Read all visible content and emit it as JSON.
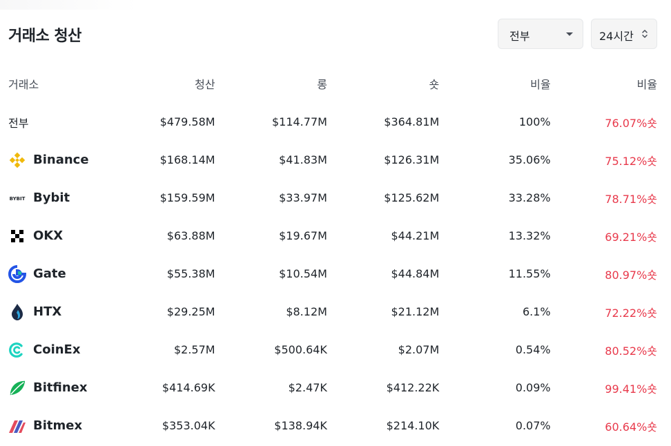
{
  "header": {
    "title": "거래소 청산",
    "exchange_select": "전부",
    "period_select": "24시간"
  },
  "table": {
    "columns": [
      "거래소",
      "청산",
      "롱",
      "숏",
      "비율",
      "비율"
    ],
    "total_row": {
      "exchange": "전부",
      "liquidation": "$479.58M",
      "long": "$114.77M",
      "short": "$364.81M",
      "share": "100%",
      "ratio": "76.07%숏"
    },
    "rows": [
      {
        "exchange": "Binance",
        "icon": "binance-logo-icon",
        "liquidation": "$168.14M",
        "long": "$41.83M",
        "short": "$126.31M",
        "share": "35.06%",
        "ratio": "75.12%숏"
      },
      {
        "exchange": "Bybit",
        "icon": "bybit-logo-icon",
        "logo_text": "BYBIT",
        "liquidation": "$159.59M",
        "long": "$33.97M",
        "short": "$125.62M",
        "share": "33.28%",
        "ratio": "78.71%숏"
      },
      {
        "exchange": "OKX",
        "icon": "okx-logo-icon",
        "liquidation": "$63.88M",
        "long": "$19.67M",
        "short": "$44.21M",
        "share": "13.32%",
        "ratio": "69.21%숏"
      },
      {
        "exchange": "Gate",
        "icon": "gate-logo-icon",
        "liquidation": "$55.38M",
        "long": "$10.54M",
        "short": "$44.84M",
        "share": "11.55%",
        "ratio": "80.97%숏"
      },
      {
        "exchange": "HTX",
        "icon": "htx-logo-icon",
        "liquidation": "$29.25M",
        "long": "$8.12M",
        "short": "$21.12M",
        "share": "6.1%",
        "ratio": "72.22%숏"
      },
      {
        "exchange": "CoinEx",
        "icon": "coinex-logo-icon",
        "liquidation": "$2.57M",
        "long": "$500.64K",
        "short": "$2.07M",
        "share": "0.54%",
        "ratio": "80.52%숏"
      },
      {
        "exchange": "Bitfinex",
        "icon": "bitfinex-logo-icon",
        "liquidation": "$414.69K",
        "long": "$2.47K",
        "short": "$412.22K",
        "share": "0.09%",
        "ratio": "99.41%숏"
      },
      {
        "exchange": "Bitmex",
        "icon": "bitmex-logo-icon",
        "liquidation": "$353.04K",
        "long": "$138.94K",
        "short": "$214.10K",
        "share": "0.07%",
        "ratio": "60.64%숏"
      }
    ]
  },
  "colors": {
    "short_ratio": "#e8394b",
    "text": "#1e2329",
    "muted": "#474d57",
    "select_bg": "#f5f5f5",
    "binance": "#f0b90b",
    "gate": "#2354e6",
    "coinex": "#1dd3c0",
    "bitfinex": "#16b157",
    "bitmex": "#e44b5d"
  }
}
